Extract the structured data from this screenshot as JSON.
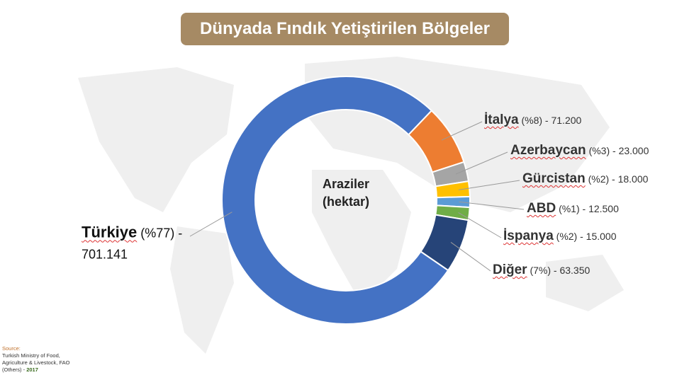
{
  "chart_data": {
    "type": "donut",
    "title": "Dünyada Fındık Yetiştirilen Bölgeler",
    "center_label": [
      "Araziler",
      "(hektar)"
    ],
    "categories": [
      "Türkiye",
      "İtalya",
      "Azerbaycan",
      "Gürcistan",
      "ABD",
      "İspanya",
      "Diğer"
    ],
    "values": [
      701141,
      71200,
      23000,
      18000,
      12500,
      15000,
      63350
    ],
    "value_labels": [
      "(%77) - 701.141",
      "(%8) - 71.200",
      "(%3) - 23.000",
      "(%2) - 18.000",
      "(%1) - 12.500",
      "(%2) - 15.000",
      "(7%) - 63.350"
    ],
    "colors": [
      "#4472c4",
      "#ed7d31",
      "#a5a5a5",
      "#ffc000",
      "#5b9bd5",
      "#70ad47",
      "#264478"
    ]
  },
  "source": {
    "label": "Source:",
    "text": "Turkish Ministry of Food, Agriculture & Livestock, FAO (Others) -",
    "year": "2017"
  }
}
